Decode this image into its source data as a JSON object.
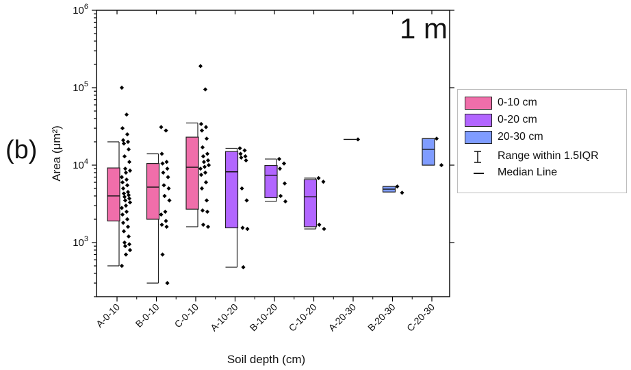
{
  "panel_label": "(b)",
  "scale_label": "1 m",
  "chart_data": {
    "type": "box",
    "title": "",
    "xlabel": "Soil depth (cm)",
    "ylabel": "Area (μm²)",
    "yscale": "log",
    "ylim": [
      200,
      1000000
    ],
    "yticks": [
      {
        "value": 1000,
        "label": "10",
        "exp": "3"
      },
      {
        "value": 10000,
        "label": "10",
        "exp": "4"
      },
      {
        "value": 100000,
        "label": "10",
        "exp": "5"
      },
      {
        "value": 1000000,
        "label": "10",
        "exp": "6"
      }
    ],
    "categories": [
      "A-0-10",
      "B-0-10",
      "C-0-10",
      "A-10-20",
      "B-10-20",
      "C-10-20",
      "A-20-30",
      "B-20-30",
      "C-20-30"
    ],
    "colors": {
      "0-10 cm": "#f06eaa",
      "0-20 cm": "#b266ff",
      "20-30 cm": "#7f9cff"
    },
    "boxes": [
      {
        "category": "A-0-10",
        "group": "0-10 cm",
        "whisker_low": 500,
        "q1": 1900,
        "median": 4000,
        "q3": 9200,
        "whisker_high": 20000,
        "points": [
          100000,
          45000,
          30000,
          25000,
          21000,
          20000,
          19000,
          16000,
          13000,
          11000,
          9000,
          8500,
          8000,
          7000,
          6500,
          6000,
          5500,
          5000,
          4500,
          4300,
          4100,
          3900,
          3700,
          3500,
          3300,
          3000,
          2800,
          2500,
          2300,
          2000,
          1800,
          1600,
          1400,
          1200,
          1000,
          950,
          900,
          800,
          700,
          500
        ]
      },
      {
        "category": "B-0-10",
        "group": "0-10 cm",
        "whisker_low": 300,
        "q1": 2000,
        "median": 5200,
        "q3": 10500,
        "whisker_high": 14000,
        "points": [
          31000,
          28000,
          14000,
          11000,
          10500,
          9000,
          8000,
          7000,
          5500,
          5000,
          4000,
          3500,
          2500,
          2300,
          1900,
          1700,
          1600,
          700,
          300
        ]
      },
      {
        "category": "C-0-10",
        "group": "0-10 cm",
        "whisker_low": 1600,
        "q1": 2700,
        "median": 9400,
        "q3": 23000,
        "whisker_high": 35000,
        "points": [
          190000,
          95000,
          34000,
          31000,
          28000,
          22000,
          17000,
          14000,
          13000,
          11500,
          11000,
          10000,
          9500,
          9000,
          8000,
          7500,
          6000,
          5000,
          3500,
          2600,
          2500,
          1700,
          1600
        ]
      },
      {
        "category": "A-10-20",
        "group": "0-20 cm",
        "whisker_low": 480,
        "q1": 1550,
        "median": 8200,
        "q3": 15000,
        "whisker_high": 16500,
        "points": [
          16500,
          15500,
          14000,
          13000,
          12500,
          11500,
          5000,
          3500,
          1550,
          1500,
          480
        ]
      },
      {
        "category": "B-10-20",
        "group": "0-20 cm",
        "whisker_low": 3400,
        "q1": 3800,
        "median": 7400,
        "q3": 9900,
        "whisker_high": 12000,
        "points": [
          12000,
          10500,
          9000,
          5800,
          4000,
          3400
        ]
      },
      {
        "category": "C-10-20",
        "group": "0-20 cm",
        "whisker_low": 1500,
        "q1": 1600,
        "median": 3900,
        "q3": 6500,
        "whisker_high": 6800,
        "points": [
          6800,
          6100,
          1700,
          1500
        ]
      },
      {
        "category": "A-20-30",
        "group": "20-30 cm",
        "whisker_low": 21500,
        "q1": 21500,
        "median": 21500,
        "q3": 21500,
        "whisker_high": 21500,
        "points": [
          21500
        ]
      },
      {
        "category": "B-20-30",
        "group": "20-30 cm",
        "whisker_low": 4500,
        "q1": 4500,
        "median": 4900,
        "q3": 5300,
        "whisker_high": 5300,
        "points": [
          5300,
          4400
        ]
      },
      {
        "category": "C-20-30",
        "group": "20-30 cm",
        "whisker_low": 10000,
        "q1": 10000,
        "median": 16000,
        "q3": 22000,
        "whisker_high": 22000,
        "points": [
          22000,
          10000
        ]
      }
    ],
    "legend": {
      "position": "right",
      "entries": [
        {
          "label": "0-10 cm",
          "kind": "box",
          "color": "#f06eaa"
        },
        {
          "label": "0-20 cm",
          "kind": "box",
          "color": "#b266ff"
        },
        {
          "label": "20-30 cm",
          "kind": "box",
          "color": "#7f9cff"
        },
        {
          "label": "Range within 1.5IQR",
          "kind": "range"
        },
        {
          "label": "Median Line",
          "kind": "line"
        }
      ]
    }
  }
}
